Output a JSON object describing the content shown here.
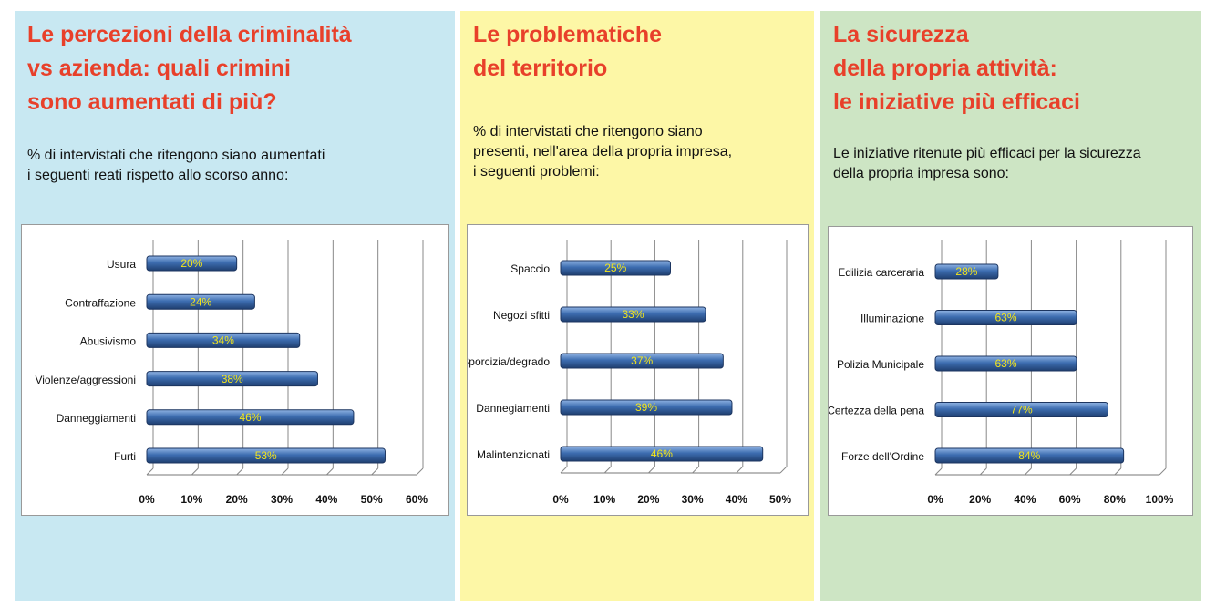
{
  "chart_data": [
    {
      "type": "bar",
      "title": "Le percezioni della criminalità\nvs azienda: quali crimini\nsono aumentati di più?",
      "subtitle": "% di intervistati che ritengono siano aumentati\ni seguenti reati rispetto allo scorso anno:",
      "categories": [
        "Usura",
        "Contraffazione",
        "Abusivismo",
        "Violenze/aggressioni",
        "Danneggiamenti",
        "Furti"
      ],
      "values": [
        20,
        24,
        34,
        38,
        46,
        53
      ],
      "value_labels": [
        "20%",
        "24%",
        "34%",
        "38%",
        "46%",
        "53%"
      ],
      "color": "#3d6db0",
      "background": "#c8e8f2",
      "xlim": [
        0,
        60
      ],
      "xticks": [
        {
          "value": 0,
          "label": "0%"
        },
        {
          "value": 10,
          "label": "10%"
        },
        {
          "value": 20,
          "label": "20%"
        },
        {
          "value": 30,
          "label": "30%"
        },
        {
          "value": 40,
          "label": "40%"
        },
        {
          "value": 50,
          "label": "50%"
        },
        {
          "value": 60,
          "label": "60%"
        }
      ],
      "grid": true
    },
    {
      "type": "bar",
      "title": "Le problematiche\ndel territorio",
      "subtitle": "% di intervistati che ritengono siano\npresenti, nell'area della propria impresa,\ni seguenti problemi:",
      "categories": [
        "Spaccio",
        "Negozi sfitti",
        "Sporcizia/degrado",
        "Dannegiamenti",
        "Malintenzionati"
      ],
      "values": [
        25,
        33,
        37,
        39,
        46
      ],
      "value_labels": [
        "25%",
        "33%",
        "37%",
        "39%",
        "46%"
      ],
      "color": "#3d6db0",
      "background": "#fdf7a6",
      "xlim": [
        0,
        50
      ],
      "xticks": [
        {
          "value": 0,
          "label": "0%"
        },
        {
          "value": 10,
          "label": "10%"
        },
        {
          "value": 20,
          "label": "20%"
        },
        {
          "value": 30,
          "label": "30%"
        },
        {
          "value": 40,
          "label": "40%"
        },
        {
          "value": 50,
          "label": "50%"
        }
      ],
      "grid": true
    },
    {
      "type": "bar",
      "title": "La sicurezza\ndella propria attività:\nle iniziative più efficaci",
      "subtitle": "Le iniziative ritenute più efficaci per la sicurezza\ndella propria impresa sono:",
      "categories": [
        "Edilizia carceraria",
        "Illuminazione",
        "Polizia Municipale",
        "Certezza della pena",
        "Forze dell'Ordine"
      ],
      "values": [
        28,
        63,
        63,
        77,
        84
      ],
      "value_labels": [
        "28%",
        "63%",
        "63%",
        "77%",
        "84%"
      ],
      "color": "#3d6db0",
      "background": "#cde5c4",
      "xlim": [
        0,
        100
      ],
      "xticks": [
        {
          "value": 0,
          "label": "0%"
        },
        {
          "value": 20,
          "label": "20%"
        },
        {
          "value": 40,
          "label": "40%"
        },
        {
          "value": 60,
          "label": "60%"
        },
        {
          "value": 80,
          "label": "80%"
        },
        {
          "value": 100,
          "label": "100%"
        }
      ],
      "grid": true
    }
  ]
}
